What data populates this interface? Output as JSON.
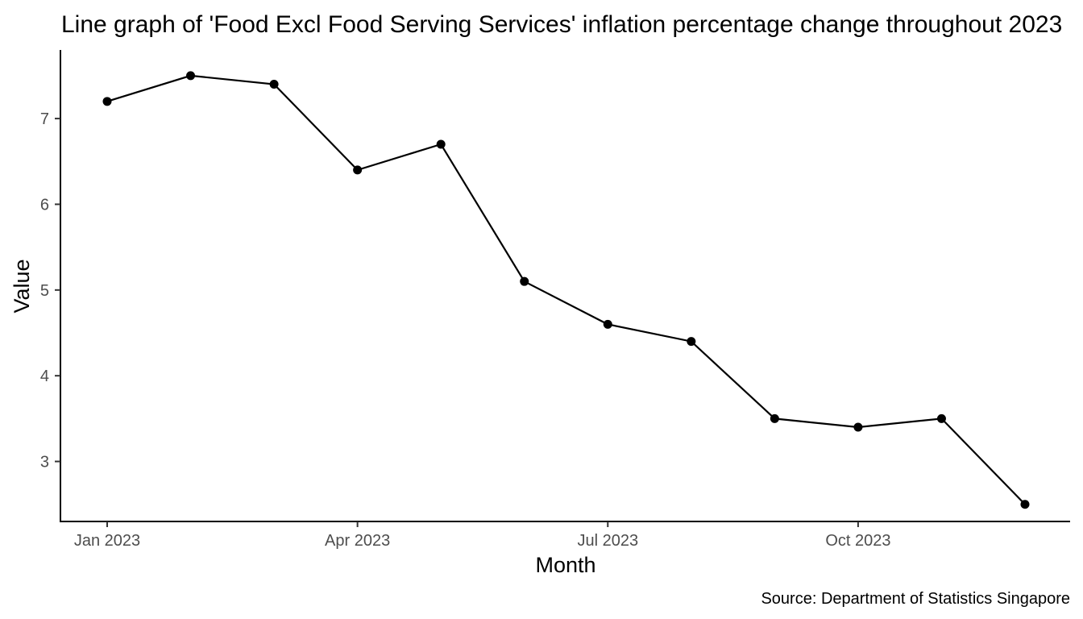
{
  "chart_data": {
    "type": "line",
    "title": "Line graph of 'Food Excl Food Serving Services' inflation percentage change throughout 2023",
    "xlabel": "Month",
    "ylabel": "Value",
    "caption": "Source: Department of Statistics Singapore",
    "x_tick_labels": [
      "Jan 2023",
      "Apr 2023",
      "Jul 2023",
      "Oct 2023"
    ],
    "y_ticks": [
      3,
      4,
      5,
      6,
      7
    ],
    "ylim": [
      2.3,
      7.8
    ],
    "grid": false,
    "series": [
      {
        "x": [
          "2023-01",
          "2023-02",
          "2023-03",
          "2023-04",
          "2023-05",
          "2023-06",
          "2023-07",
          "2023-08",
          "2023-09",
          "2023-10",
          "2023-11",
          "2023-12"
        ],
        "values": [
          7.2,
          7.5,
          7.4,
          6.4,
          6.7,
          5.1,
          4.6,
          4.4,
          3.5,
          3.4,
          3.5,
          2.5
        ],
        "color": "#000000"
      }
    ]
  }
}
